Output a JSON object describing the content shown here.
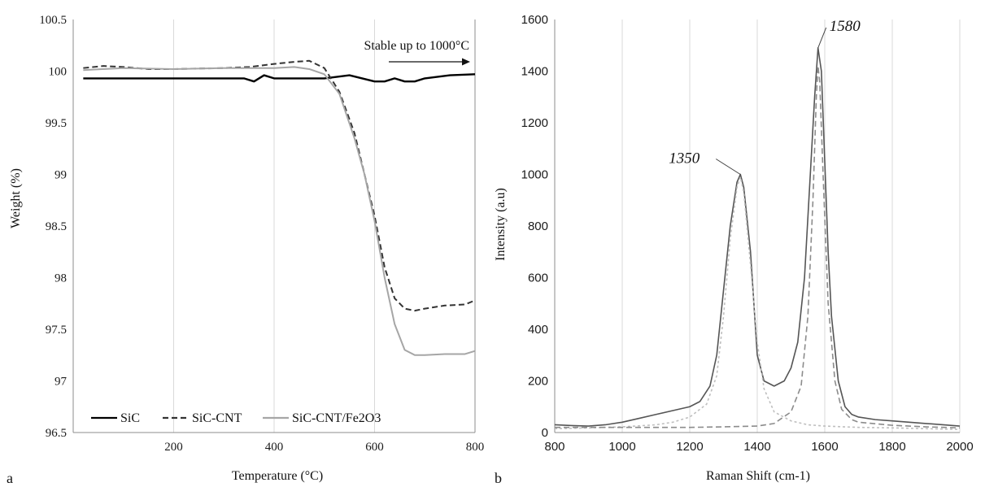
{
  "panels": {
    "a": {
      "letter": "a"
    },
    "b": {
      "letter": "b"
    }
  },
  "chart_data": [
    {
      "type": "line",
      "panel": "a",
      "title": "",
      "xlabel": "Temperature (°C)",
      "ylabel": "Weight (%)",
      "xlim": [
        0,
        800
      ],
      "ylim": [
        96.5,
        100.5
      ],
      "xticks": [
        200,
        400,
        600,
        800
      ],
      "yticks": [
        96.5,
        97,
        97.5,
        98,
        98.5,
        99,
        99.5,
        100,
        100.5
      ],
      "grid": "vertical",
      "legend": "bottom-left",
      "annotation": "Stable up to 1000°C",
      "series": [
        {
          "name": "SiC",
          "color": "#000000",
          "dash": "solid",
          "x": [
            20,
            100,
            200,
            300,
            340,
            360,
            380,
            400,
            450,
            500,
            550,
            600,
            620,
            640,
            660,
            680,
            700,
            750,
            800
          ],
          "y": [
            99.93,
            99.93,
            99.93,
            99.93,
            99.93,
            99.9,
            99.96,
            99.93,
            99.93,
            99.93,
            99.96,
            99.9,
            99.9,
            99.93,
            99.9,
            99.9,
            99.93,
            99.96,
            99.97
          ]
        },
        {
          "name": "SiC-CNT",
          "color": "#333333",
          "dash": "dashed",
          "x": [
            20,
            60,
            100,
            150,
            200,
            300,
            350,
            400,
            440,
            470,
            500,
            530,
            560,
            580,
            600,
            620,
            640,
            660,
            680,
            700,
            740,
            780,
            800
          ],
          "y": [
            100.03,
            100.05,
            100.04,
            100.02,
            100.02,
            100.03,
            100.04,
            100.07,
            100.09,
            100.1,
            100.03,
            99.8,
            99.4,
            99.0,
            98.6,
            98.1,
            97.8,
            97.7,
            97.68,
            97.7,
            97.73,
            97.74,
            97.78
          ]
        },
        {
          "name": "SiC-CNT/Fe2O3",
          "color": "#a6a6a6",
          "dash": "solid",
          "x": [
            20,
            100,
            200,
            300,
            400,
            440,
            470,
            500,
            530,
            560,
            580,
            600,
            620,
            640,
            660,
            680,
            700,
            740,
            780,
            800
          ],
          "y": [
            100.01,
            100.03,
            100.02,
            100.03,
            100.03,
            100.04,
            100.02,
            99.97,
            99.78,
            99.35,
            99.0,
            98.55,
            98.0,
            97.55,
            97.3,
            97.25,
            97.25,
            97.26,
            97.26,
            97.29
          ]
        }
      ]
    },
    {
      "type": "line",
      "panel": "b",
      "title": "",
      "xlabel": "Raman Shift (cm-1)",
      "ylabel": "Intensity  (a.u)",
      "xlim": [
        800,
        2000
      ],
      "ylim": [
        0,
        1600
      ],
      "xticks": [
        800,
        1000,
        1200,
        1400,
        1600,
        1800,
        2000
      ],
      "yticks": [
        0,
        200,
        400,
        600,
        800,
        1000,
        1200,
        1400,
        1600
      ],
      "grid": "vertical",
      "legend": "none",
      "peak_labels": [
        {
          "text": "1350",
          "x": 1350,
          "y": 1000
        },
        {
          "text": "1580",
          "x": 1580,
          "y": 1490
        }
      ],
      "series": [
        {
          "role": "measured",
          "color": "#555555",
          "dash": "solid",
          "x": [
            800,
            850,
            900,
            950,
            1000,
            1050,
            1100,
            1150,
            1200,
            1230,
            1260,
            1280,
            1300,
            1320,
            1340,
            1350,
            1360,
            1380,
            1400,
            1420,
            1450,
            1480,
            1500,
            1520,
            1540,
            1555,
            1570,
            1580,
            1590,
            1600,
            1610,
            1620,
            1640,
            1660,
            1680,
            1700,
            1750,
            1800,
            1850,
            1900,
            1950,
            2000
          ],
          "y": [
            30,
            27,
            25,
            30,
            40,
            55,
            70,
            85,
            100,
            120,
            180,
            300,
            550,
            800,
            970,
            1000,
            950,
            700,
            300,
            200,
            180,
            200,
            250,
            350,
            600,
            950,
            1300,
            1490,
            1400,
            1050,
            700,
            450,
            200,
            100,
            70,
            60,
            50,
            45,
            40,
            35,
            30,
            25
          ]
        },
        {
          "role": "fit-1350",
          "color": "#bfbfbf",
          "dash": "dotted",
          "x": [
            800,
            900,
            1000,
            1100,
            1150,
            1200,
            1250,
            1280,
            1300,
            1320,
            1340,
            1350,
            1360,
            1380,
            1400,
            1420,
            1450,
            1500,
            1550,
            1600,
            1700,
            1800,
            1900,
            2000
          ],
          "y": [
            15,
            18,
            22,
            30,
            40,
            60,
            110,
            220,
            450,
            750,
            950,
            990,
            930,
            650,
            350,
            170,
            80,
            45,
            30,
            25,
            20,
            18,
            15,
            12
          ]
        },
        {
          "role": "fit-1580",
          "color": "#8c8c8c",
          "dash": "dashed",
          "x": [
            800,
            1000,
            1200,
            1300,
            1400,
            1450,
            1500,
            1530,
            1550,
            1565,
            1575,
            1580,
            1585,
            1595,
            1610,
            1630,
            1650,
            1680,
            1700,
            1800,
            1900,
            2000
          ],
          "y": [
            20,
            20,
            20,
            22,
            25,
            35,
            80,
            180,
            450,
            900,
            1300,
            1420,
            1360,
            1000,
            500,
            200,
            90,
            50,
            40,
            28,
            22,
            18
          ]
        }
      ]
    }
  ]
}
